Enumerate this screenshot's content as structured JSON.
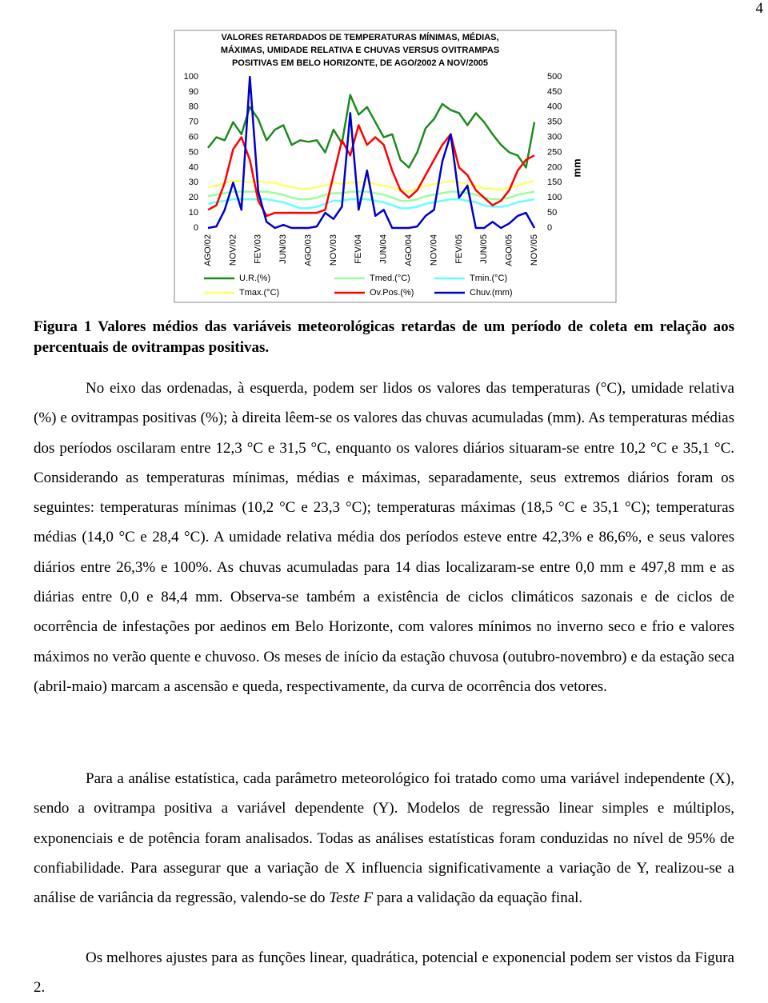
{
  "page_number": "4",
  "chart_data": {
    "type": "line",
    "title_lines": [
      "VALORES RETARDADOS DE TEMPERATURAS MÍNIMAS, MÉDIAS,",
      "MÁXIMAS, UMIDADE RELATIVA E CHUVAS VERSUS OVITRAMPAS",
      "POSITIVAS EM BELO HORIZONTE, DE AGO/2002 A NOV/2005"
    ],
    "y2_label": "mm",
    "categories": [
      "AGO/02",
      null,
      null,
      "NOV/02",
      null,
      null,
      "FEV/03",
      null,
      null,
      "JUN/03",
      null,
      null,
      "AGO/03",
      null,
      null,
      "NOV/03",
      null,
      null,
      "FEV/04",
      null,
      null,
      "JUN/04",
      null,
      null,
      "AGO/04",
      null,
      null,
      "NOV/04",
      null,
      null,
      "FEV/05",
      null,
      null,
      "JUN/05",
      null,
      null,
      "AGO/05",
      null,
      null,
      "NOV/05"
    ],
    "ylim": [
      0,
      100
    ],
    "yticks": [
      0,
      10,
      20,
      30,
      40,
      50,
      60,
      70,
      80,
      90,
      100
    ],
    "y2lim": [
      0,
      500
    ],
    "y2ticks": [
      0,
      50,
      100,
      150,
      200,
      250,
      300,
      350,
      400,
      450,
      500
    ],
    "grid": false,
    "series": [
      {
        "name": "U.R.(%)",
        "color": "#1e8a1e",
        "values": [
          53,
          60,
          58,
          70,
          62,
          80,
          72,
          58,
          65,
          68,
          55,
          58,
          57,
          58,
          50,
          65,
          56,
          88,
          75,
          80,
          70,
          60,
          62,
          45,
          40,
          50,
          66,
          72,
          82,
          78,
          76,
          68,
          76,
          70,
          62,
          55,
          50,
          48,
          40,
          70
        ]
      },
      {
        "name": "Tmed.(°C)",
        "color": "#99ff99",
        "values": [
          21,
          22,
          23,
          24,
          24,
          24,
          24,
          24,
          23,
          22,
          20,
          19,
          19,
          20,
          22,
          23,
          23,
          24,
          24,
          24,
          23,
          22,
          20,
          18,
          18,
          19,
          21,
          22,
          23,
          24,
          24,
          23,
          22,
          20,
          19,
          19,
          20,
          22,
          23,
          24
        ]
      },
      {
        "name": "Tmin.(°C)",
        "color": "#66ffff",
        "values": [
          16,
          17,
          18,
          19,
          19,
          19,
          19,
          19,
          18,
          17,
          15,
          13,
          13,
          14,
          16,
          18,
          18,
          19,
          19,
          19,
          18,
          17,
          15,
          13,
          13,
          14,
          16,
          17,
          18,
          19,
          19,
          18,
          17,
          15,
          14,
          14,
          15,
          17,
          18,
          19
        ]
      },
      {
        "name": "Tmax.(°C)",
        "color": "#ffff66",
        "values": [
          27,
          28,
          30,
          31,
          31,
          30,
          31,
          30,
          30,
          28,
          27,
          26,
          26,
          27,
          28,
          30,
          29,
          30,
          30,
          31,
          29,
          28,
          27,
          25,
          24,
          26,
          28,
          29,
          30,
          31,
          30,
          29,
          28,
          26,
          26,
          25,
          27,
          28,
          30,
          31
        ]
      },
      {
        "name": "Ov.Pos.(%)",
        "color": "#ff0000",
        "values": [
          12,
          15,
          30,
          52,
          60,
          45,
          18,
          8,
          10,
          10,
          10,
          10,
          10,
          10,
          12,
          35,
          58,
          48,
          68,
          55,
          60,
          55,
          38,
          25,
          20,
          25,
          35,
          45,
          55,
          62,
          40,
          35,
          25,
          20,
          15,
          18,
          25,
          38,
          45,
          48
        ]
      },
      {
        "name": "Chuv.(mm)",
        "color": "#0000cc",
        "axis": "y2",
        "values": [
          0,
          5,
          60,
          150,
          60,
          500,
          120,
          20,
          0,
          10,
          0,
          0,
          0,
          5,
          50,
          30,
          70,
          380,
          60,
          190,
          40,
          60,
          0,
          0,
          0,
          5,
          40,
          60,
          220,
          310,
          100,
          140,
          0,
          0,
          20,
          0,
          15,
          40,
          50,
          0
        ]
      }
    ]
  },
  "caption": "Figura 1   Valores médios das variáveis meteorológicas retardas de um período de coleta em relação aos percentuais de ovitrampas positivas.",
  "paragraphs": [
    [
      "No eixo das ordenadas, à esquerda, podem ser lidos os valores das temperaturas (°C), umidade relativa (%) e ovitrampas positivas (%); à direita lêem-se os valores das chuvas acumuladas (mm). As temperaturas médias dos períodos oscilaram entre 12,3 °C e 31,5 °C, enquanto os valores diários situaram-se entre 10,2 °C e 35,1 °C. Considerando as temperaturas mínimas, médias e máximas, separadamente, seus extremos diários foram os seguintes: temperaturas mínimas (10,2 °C e 23,3 °C); temperaturas máximas (18,5 °C e 35,1 °C); temperaturas médias (14,0 °C e 28,4 °C). A umidade relativa média dos períodos esteve entre 42,3% e 86,6%, e seus valores diários entre 26,3% e 100%. As chuvas acumuladas para 14 dias localizaram-se entre 0,0 mm e 497,8 mm e as diárias entre 0,0 e 84,4 mm. Observa-se também a existência de ciclos climáticos sazonais e de ciclos de ocorrência de infestações por aedinos em Belo Horizonte, com valores mínimos no inverno seco e frio e valores máximos no verão quente e chuvoso. Os meses de início da estação chuvosa (outubro-novembro) e da estação seca (abril-maio) marcam a ascensão e queda, respectivamente, da curva de ocorrência dos vetores."
    ],
    [
      "Para a análise estatística, cada parâmetro meteorológico foi tratado como uma variável independente (X), sendo a ovitrampa positiva a variável dependente (Y). Modelos de regressão linear simples e múltiplos, exponenciais e de potência foram analisados. Todas as análises estatísticas foram conduzidas no nível de 95% de confiabilidade. Para assegurar que a variação de X influencia significativamente a variação de Y, realizou-se a análise de variância da regressão, valendo-se do ",
      "Teste F",
      " para a validação da equação final."
    ],
    [
      "Os melhores ajustes para as funções linear, quadrática, potencial e exponencial podem ser vistos da Figura 2."
    ]
  ]
}
